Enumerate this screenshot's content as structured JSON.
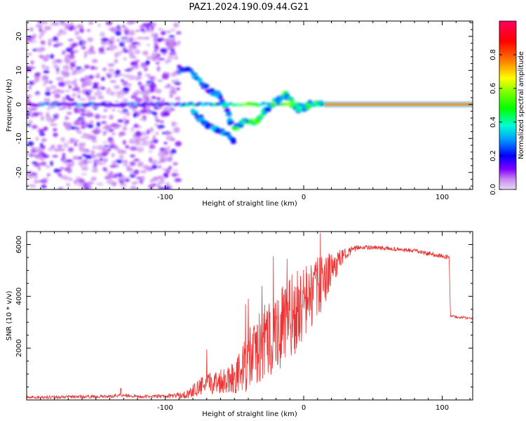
{
  "title": "PAZ1.2024.190.09.44.G21",
  "chart_data": [
    {
      "type": "heatmap",
      "xlabel": "Height of straight line (km)",
      "ylabel": "Frequency (Hz)",
      "xlim": [
        -200,
        122
      ],
      "ylim": [
        -25,
        24.5
      ],
      "xticks_major": [
        -100,
        0,
        100
      ],
      "xtick_labels": [
        "-100",
        "0",
        "100"
      ],
      "yticks_major": [
        -20,
        -10,
        0,
        10,
        20
      ],
      "ytick_labels": [
        "-20",
        "-10",
        "0",
        "10",
        "20"
      ],
      "grid": false,
      "colorbar": {
        "label": "Normalized spectral amplitude",
        "colormap": "gist_rainbow_r",
        "range": [
          0,
          1
        ],
        "ticks": [
          0.0,
          0.2,
          0.4,
          0.6,
          0.8
        ],
        "tick_labels": [
          "0.0",
          "0.2",
          "0.4",
          "0.6",
          "0.8"
        ]
      },
      "features": {
        "noise_region_x": [
          -200,
          -90
        ],
        "strong_line": {
          "x": [
            15,
            122
          ],
          "frequency": 0,
          "amplitude": 0.9
        },
        "upper_branch": [
          [
            -90,
            10.5
          ],
          [
            -82,
            10
          ],
          [
            -75,
            7
          ],
          [
            -68,
            4
          ],
          [
            -62,
            3
          ],
          [
            -55,
            -2
          ],
          [
            -52,
            -6
          ]
        ],
        "lower_branch": [
          [
            -80,
            -2
          ],
          [
            -75,
            -4
          ],
          [
            -70,
            -6
          ],
          [
            -65,
            -7
          ],
          [
            -60,
            -8
          ],
          [
            -55,
            -9
          ],
          [
            -50,
            -11
          ]
        ],
        "rising_branch": [
          [
            -50,
            -7
          ],
          [
            -42,
            -5
          ],
          [
            -35,
            -5.5
          ],
          [
            -30,
            -3
          ],
          [
            -25,
            -1
          ],
          [
            -20,
            1
          ],
          [
            -15,
            2
          ],
          [
            -12,
            3
          ],
          [
            -8,
            0
          ],
          [
            -5,
            -1.5
          ],
          [
            0,
            -1
          ],
          [
            5,
            0
          ],
          [
            10,
            0.5
          ],
          [
            15,
            0
          ]
        ],
        "zero_band_x": [
          -200,
          15
        ]
      }
    },
    {
      "type": "line",
      "xlabel": "Height of straight line (km)",
      "ylabel": "SNR (10 * v/v)",
      "xlim": [
        -200,
        122
      ],
      "ylim": [
        0,
        6500
      ],
      "xticks_major": [
        -100,
        0,
        100
      ],
      "xtick_labels": [
        "-100",
        "0",
        "100"
      ],
      "yticks_major": [
        2000,
        4000,
        6000
      ],
      "ytick_labels": [
        "2000",
        "4000",
        "6000"
      ],
      "line_color": "#ee3333",
      "grid": false,
      "envelope": {
        "x": [
          -200,
          -180,
          -160,
          -140,
          -130,
          -120,
          -100,
          -85,
          -80,
          -75,
          -70,
          -60,
          -50,
          -45,
          -40,
          -30,
          -20,
          -10,
          0,
          10,
          20,
          30,
          40,
          60,
          80,
          100,
          105,
          106,
          110,
          122
        ],
        "mean": [
          100,
          110,
          120,
          140,
          200,
          130,
          140,
          200,
          350,
          500,
          600,
          750,
          900,
          1100,
          1500,
          2100,
          2600,
          3100,
          3700,
          4300,
          5000,
          5650,
          5900,
          5850,
          5750,
          5550,
          5500,
          3250,
          3200,
          3150
        ],
        "amp": [
          60,
          60,
          60,
          60,
          80,
          60,
          70,
          150,
          250,
          350,
          400,
          500,
          650,
          900,
          1200,
          1500,
          1600,
          1700,
          1500,
          1200,
          700,
          200,
          90,
          80,
          80,
          90,
          90,
          60,
          50,
          50
        ]
      },
      "spikes": [
        {
          "x": -132,
          "y": 450
        },
        {
          "x": -70,
          "y": 1950
        },
        {
          "x": -42,
          "y": 3700
        },
        {
          "x": -40,
          "y": 3900
        },
        {
          "x": -30,
          "y": 4400
        },
        {
          "x": -22,
          "y": 5550
        },
        {
          "x": -12,
          "y": 5450
        },
        {
          "x": 12,
          "y": 6450
        }
      ]
    }
  ]
}
